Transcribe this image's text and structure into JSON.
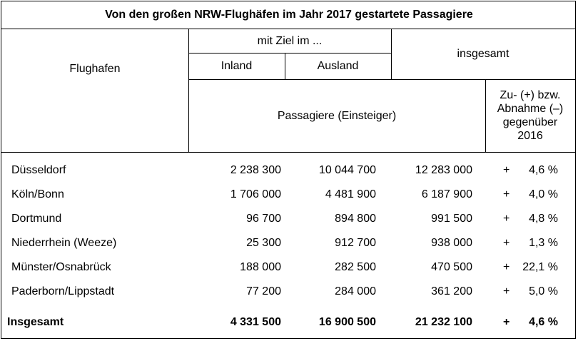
{
  "title": "Von den großen NRW-Flughäfen im Jahr 2017 gestartete Passagiere",
  "header": {
    "flughafen": "Flughafen",
    "mit_ziel": "mit Ziel im ...",
    "inland": "Inland",
    "ausland": "Ausland",
    "insgesamt": "insgesamt",
    "passagiere": "Passagiere (Einsteiger)",
    "change_lines": [
      "Zu- (+) bzw.",
      "Abnahme (–)",
      "gegenüber",
      "2016"
    ]
  },
  "rows": [
    {
      "airport": "Düsseldorf",
      "inland": "2 238 300",
      "ausland": "10 044 700",
      "total": "12 283 000",
      "sign": "+",
      "change": "4,6 %"
    },
    {
      "airport": "Köln/Bonn",
      "inland": "1 706 000",
      "ausland": "4 481 900",
      "total": "6 187 900",
      "sign": "+",
      "change": "4,0 %"
    },
    {
      "airport": "Dortmund",
      "inland": "96 700",
      "ausland": "894 800",
      "total": "991 500",
      "sign": "+",
      "change": "4,8 %"
    },
    {
      "airport": "Niederrhein (Weeze)",
      "inland": "25 300",
      "ausland": "912 700",
      "total": "938 000",
      "sign": "+",
      "change": "1,3 %"
    },
    {
      "airport": "Münster/Osnabrück",
      "inland": "188 000",
      "ausland": "282 500",
      "total": "470 500",
      "sign": "+",
      "change": "22,1 %"
    },
    {
      "airport": "Paderborn/Lippstadt",
      "inland": "77 200",
      "ausland": "284 000",
      "total": "361 200",
      "sign": "+",
      "change": "5,0 %"
    }
  ],
  "total": {
    "airport": "Insgesamt",
    "inland": "4 331 500",
    "ausland": "16 900 500",
    "total": "21 232 100",
    "sign": "+",
    "change": "4,6 %"
  }
}
